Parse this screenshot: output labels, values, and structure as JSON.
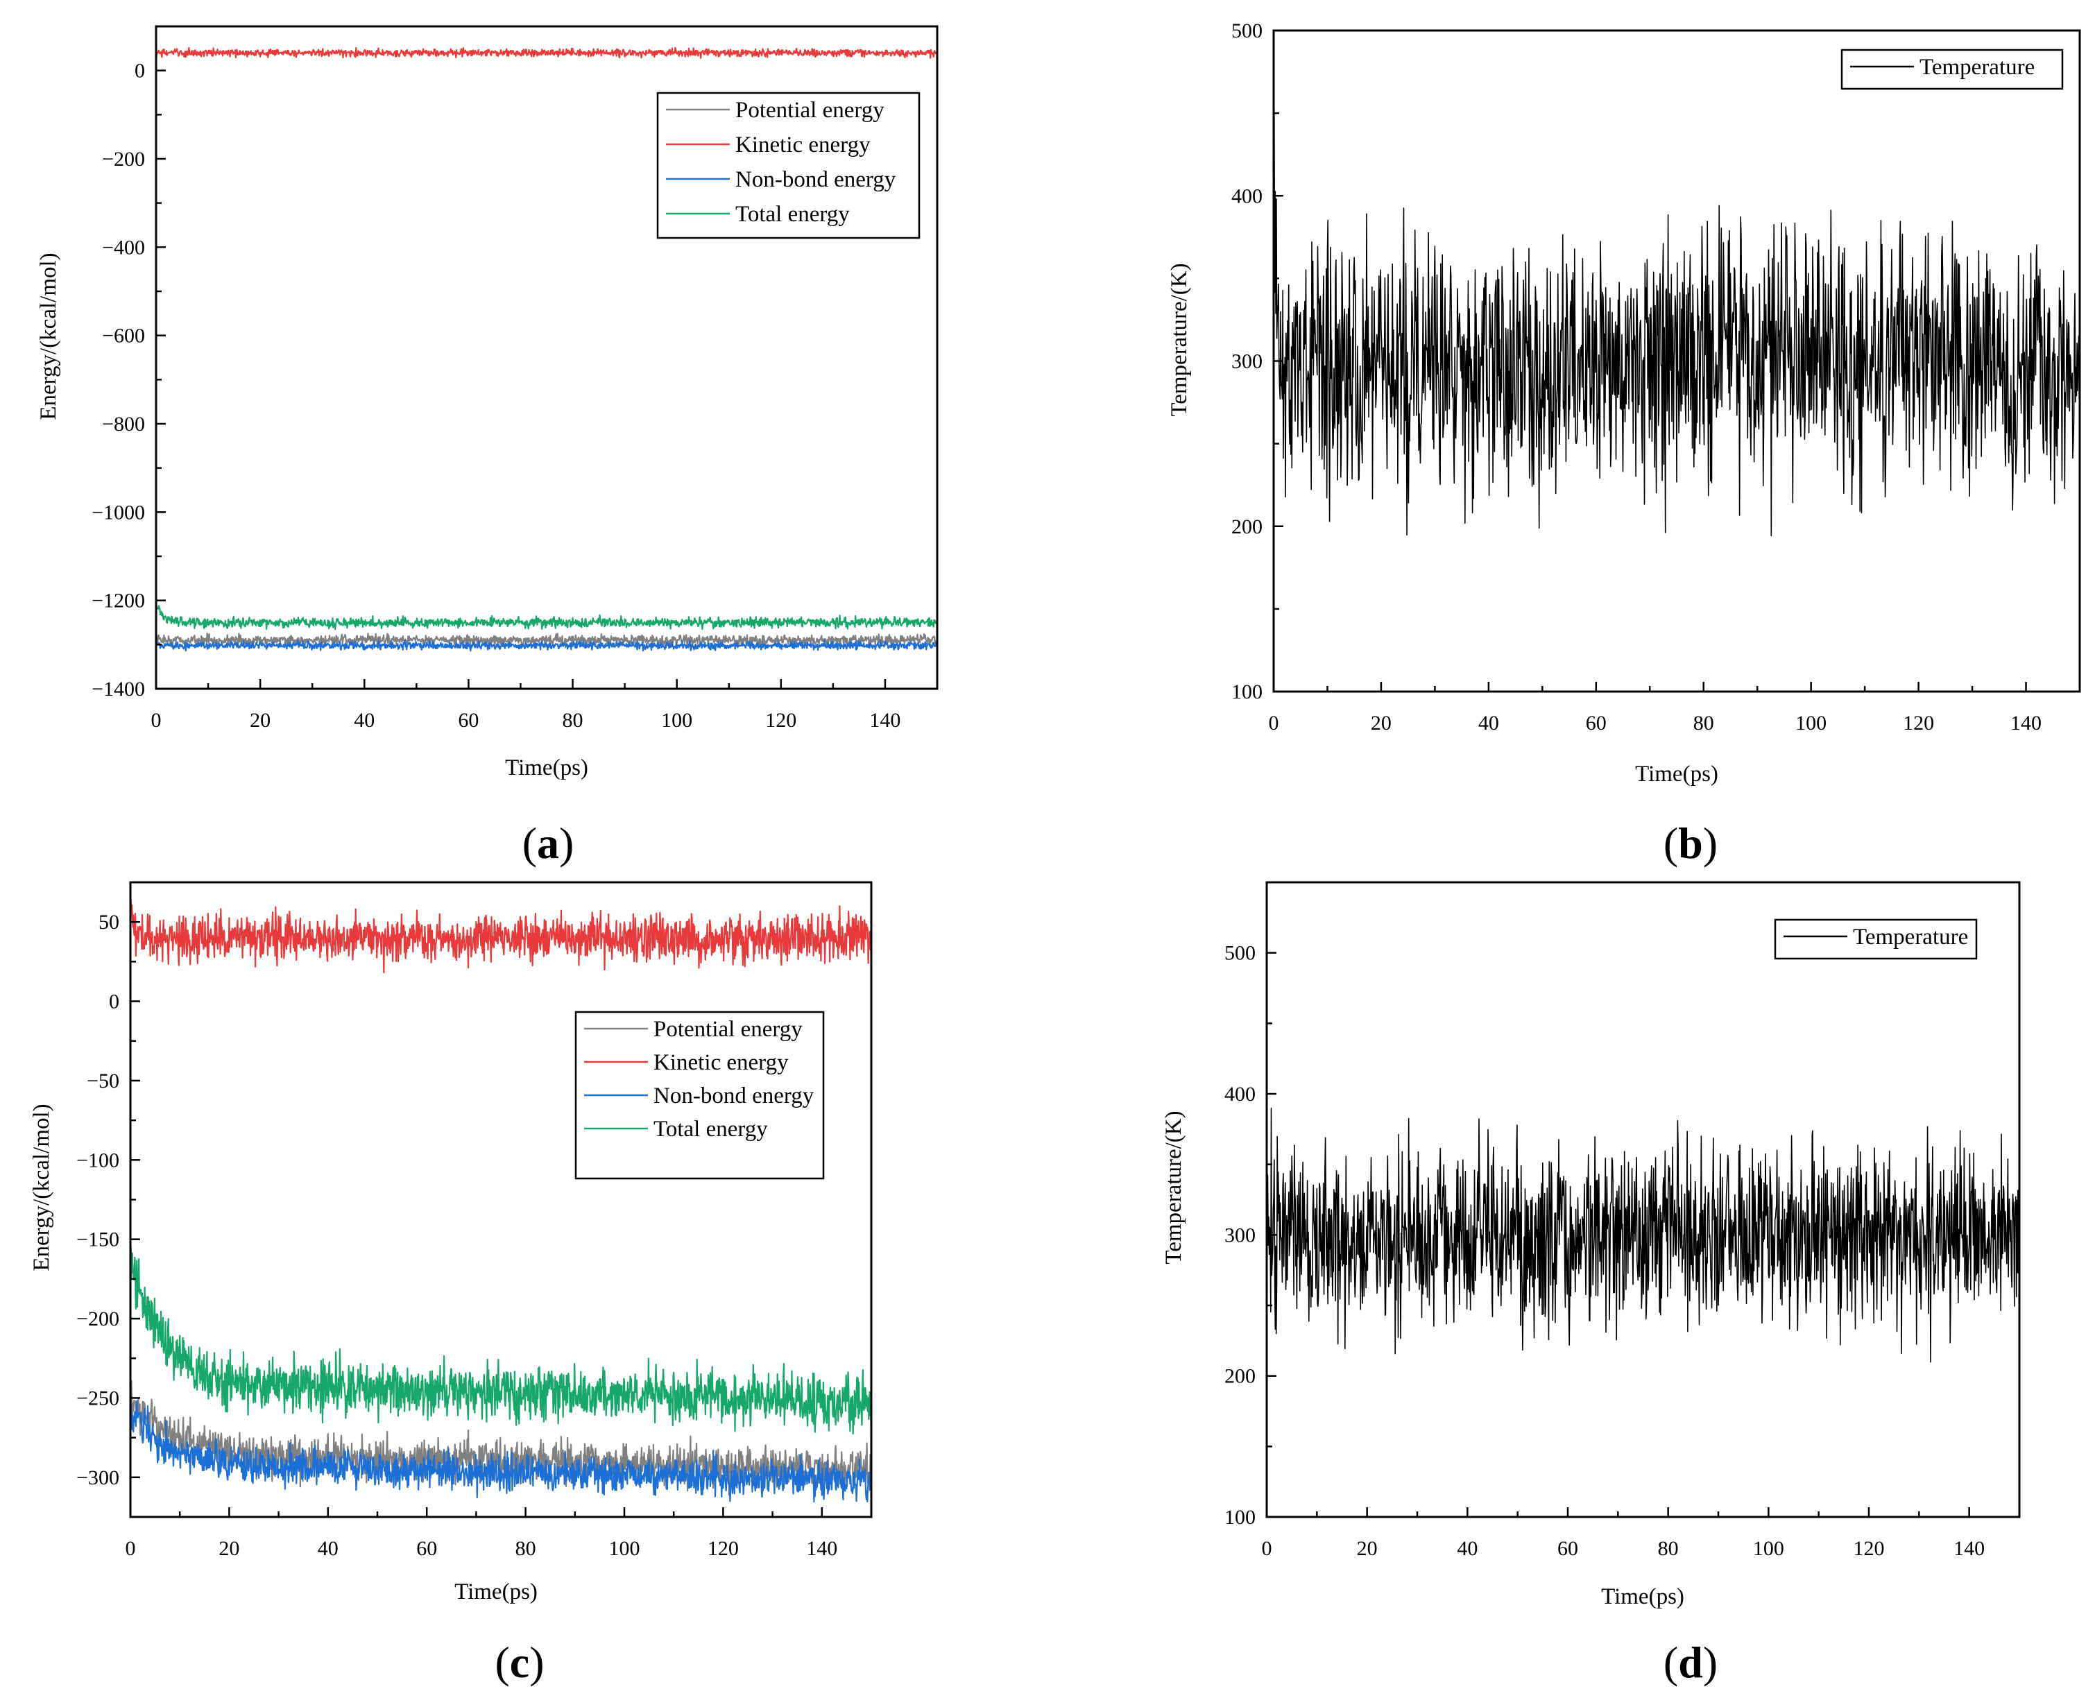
{
  "chart_data": [
    {
      "panel": "a",
      "type": "line",
      "xlabel": "Time(ps)",
      "ylabel": "Energy/(kcal/mol)",
      "xlim": [
        0,
        150
      ],
      "ylim": [
        -1400,
        100
      ],
      "xticks": [
        0,
        20,
        40,
        60,
        80,
        100,
        120,
        140
      ],
      "yticks": [
        0,
        -200,
        -400,
        -600,
        -800,
        -1000,
        -1200,
        -1400
      ],
      "legend_position": "top-right",
      "series": [
        {
          "name": "Potential energy",
          "color": "#808080",
          "start": -1290,
          "start_decay": 0,
          "steady": -1290,
          "noise": 8
        },
        {
          "name": "Kinetic energy",
          "color": "#e8393b",
          "start": 40,
          "start_decay": 0,
          "steady": 40,
          "noise": 6
        },
        {
          "name": "Non-bond energy",
          "color": "#1c6fd6",
          "start": -1300,
          "start_decay": 0,
          "steady": -1302,
          "noise": 6
        },
        {
          "name": "Total energy",
          "color": "#16a86a",
          "start": -1210,
          "start_decay": 1.5,
          "steady": -1250,
          "noise": 8
        }
      ]
    },
    {
      "panel": "b",
      "type": "line",
      "xlabel": "Time(ps)",
      "ylabel": "Temperature/(K)",
      "xlim": [
        0,
        150
      ],
      "ylim": [
        100,
        500
      ],
      "xticks": [
        0,
        20,
        40,
        60,
        80,
        100,
        120,
        140
      ],
      "yticks": [
        100,
        200,
        300,
        400,
        500
      ],
      "legend_position": "top-right",
      "series": [
        {
          "name": "Temperature",
          "color": "#000000",
          "start": 460,
          "start_decay": 0.3,
          "steady": 300,
          "noise": 55
        }
      ]
    },
    {
      "panel": "c",
      "type": "line",
      "xlabel": "Time(ps)",
      "ylabel": "Energy/(kcal/mol)",
      "xlim": [
        0,
        150
      ],
      "ylim": [
        -325,
        75
      ],
      "xticks": [
        0,
        20,
        40,
        60,
        80,
        100,
        120,
        140
      ],
      "yticks": [
        50,
        0,
        -50,
        -100,
        -150,
        -200,
        -250,
        -300
      ],
      "legend_position": "top-right",
      "series": [
        {
          "name": "Potential energy",
          "color": "#808080",
          "start": -250,
          "start_decay": 8,
          "steady": -285,
          "drift": -10,
          "noise": 9
        },
        {
          "name": "Kinetic energy",
          "color": "#e8393b",
          "start": 70,
          "start_decay": 0.6,
          "steady": 40,
          "noise": 10
        },
        {
          "name": "Non-bond energy",
          "color": "#1c6fd6",
          "start": -260,
          "start_decay": 8,
          "steady": -292,
          "drift": -10,
          "noise": 8
        },
        {
          "name": "Total energy",
          "color": "#16a86a",
          "start": -160,
          "start_decay": 6,
          "steady": -240,
          "drift": -12,
          "noise": 12
        }
      ]
    },
    {
      "panel": "d",
      "type": "line",
      "xlabel": "Time(ps)",
      "ylabel": "Temperature/(K)",
      "xlim": [
        0,
        150
      ],
      "ylim": [
        100,
        550
      ],
      "xticks": [
        0,
        20,
        40,
        60,
        80,
        100,
        120,
        140
      ],
      "yticks": [
        100,
        200,
        300,
        400,
        500
      ],
      "legend_position": "top-right",
      "series": [
        {
          "name": "Temperature",
          "color": "#000000",
          "start": 300,
          "start_decay": 0,
          "steady": 300,
          "noise": 45
        }
      ]
    }
  ],
  "panel_labels": {
    "a": {
      "open": "(",
      "letter": "a",
      "close": ")"
    },
    "b": {
      "open": "(",
      "letter": "b",
      "close": ")"
    },
    "c": {
      "open": "(",
      "letter": "c",
      "close": ")"
    },
    "d": {
      "open": "(",
      "letter": "d",
      "close": ")"
    }
  }
}
